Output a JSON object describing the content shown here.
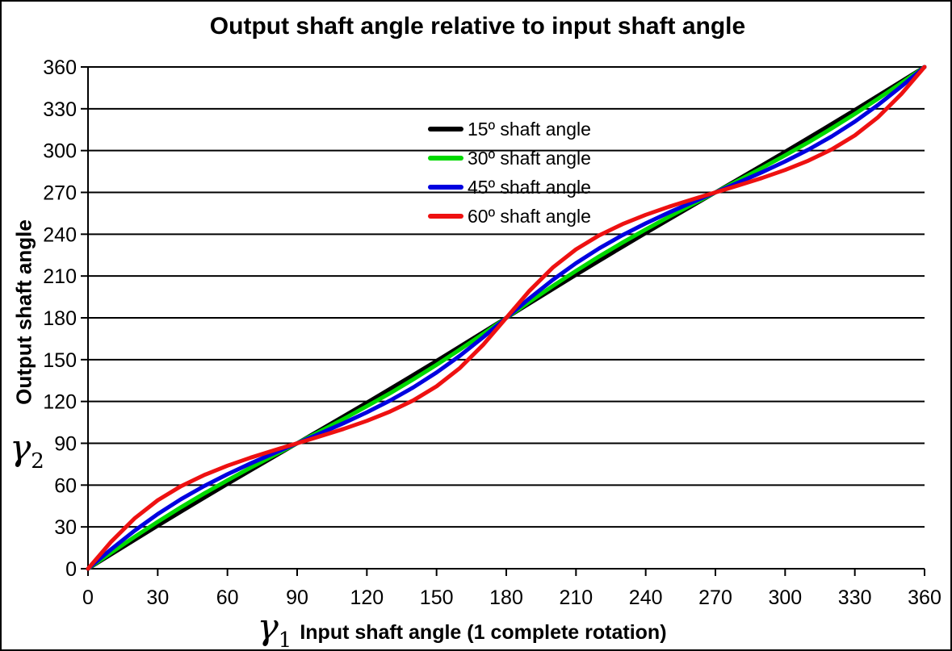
{
  "figure": {
    "title": "Output shaft angle relative to input shaft angle",
    "y_axis_title": "Output shaft angle",
    "x_axis_title": "Input shaft angle (1 complete rotation)",
    "y_symbol": "γ",
    "y_symbol_sub": "2",
    "x_symbol": "γ",
    "x_symbol_sub": "1"
  },
  "chart_data": {
    "type": "line",
    "title": "Output shaft angle relative to input shaft angle",
    "xlabel": "γ1 Input shaft angle (1 complete rotation)",
    "ylabel": "γ2 Output shaft angle",
    "xlim": [
      0,
      360
    ],
    "ylim": [
      0,
      360
    ],
    "xticks": [
      0,
      30,
      60,
      90,
      120,
      150,
      180,
      210,
      240,
      270,
      300,
      330,
      360
    ],
    "yticks": [
      0,
      30,
      60,
      90,
      120,
      150,
      180,
      210,
      240,
      270,
      300,
      330,
      360
    ],
    "grid": "horizontal-only",
    "legend_position": "upper-center-inside",
    "axis_color": "#000000",
    "x": [
      0,
      10,
      20,
      30,
      40,
      50,
      60,
      70,
      80,
      90,
      100,
      110,
      120,
      130,
      140,
      150,
      160,
      170,
      180,
      190,
      200,
      210,
      220,
      230,
      240,
      250,
      260,
      270,
      280,
      290,
      300,
      310,
      320,
      330,
      340,
      350,
      360
    ],
    "series": [
      {
        "name": "15º shaft angle",
        "shaft_angle_deg": 15,
        "color": "#000000",
        "values": [
          0,
          10.35,
          20.65,
          30.87,
          40.98,
          50.97,
          60.86,
          70.62,
          80.33,
          90,
          99.67,
          109.38,
          119.14,
          129.03,
          139.02,
          149.13,
          159.35,
          169.65,
          180,
          190.35,
          200.65,
          210.87,
          220.98,
          230.97,
          240.86,
          250.62,
          260.33,
          270,
          279.67,
          289.38,
          299.14,
          309.03,
          319.02,
          329.13,
          339.35,
          349.65,
          360
        ]
      },
      {
        "name": "30º shaft angle",
        "shaft_angle_deg": 30,
        "color": "#00D900",
        "values": [
          0,
          11.51,
          22.8,
          33.69,
          44.1,
          54.0,
          63.43,
          72.51,
          81.32,
          90,
          98.68,
          107.49,
          116.57,
          125.9,
          135.9,
          146.31,
          157.2,
          168.49,
          180,
          191.51,
          202.8,
          213.69,
          224.1,
          234.0,
          243.43,
          252.51,
          261.32,
          270,
          278.68,
          287.49,
          296.57,
          305.9,
          315.9,
          326.31,
          337.2,
          348.49,
          360
        ]
      },
      {
        "name": "45º shaft angle",
        "shaft_angle_deg": 45,
        "color": "#0000E0",
        "values": [
          0,
          14.0,
          27.24,
          39.23,
          49.88,
          59.32,
          67.79,
          75.56,
          82.89,
          90,
          97.11,
          104.44,
          112.21,
          120.68,
          130.12,
          140.77,
          152.76,
          166.0,
          180,
          194.0,
          207.24,
          219.23,
          229.88,
          239.32,
          247.79,
          255.56,
          262.89,
          270,
          277.11,
          284.44,
          292.21,
          300.68,
          310.12,
          320.77,
          332.76,
          346.0,
          360
        ]
      },
      {
        "name": "60º shaft angle",
        "shaft_angle_deg": 60,
        "color": "#EE1111",
        "values": [
          0,
          19.43,
          36.05,
          49.11,
          59.21,
          67.24,
          73.9,
          79.69,
          84.96,
          90,
          95.04,
          100.31,
          106.1,
          112.76,
          120.79,
          130.89,
          143.95,
          160.57,
          180,
          199.43,
          216.05,
          229.11,
          239.21,
          247.24,
          253.9,
          259.69,
          264.96,
          270,
          275.04,
          280.31,
          286.1,
          292.76,
          300.79,
          310.89,
          323.95,
          340.57,
          360
        ]
      }
    ]
  }
}
